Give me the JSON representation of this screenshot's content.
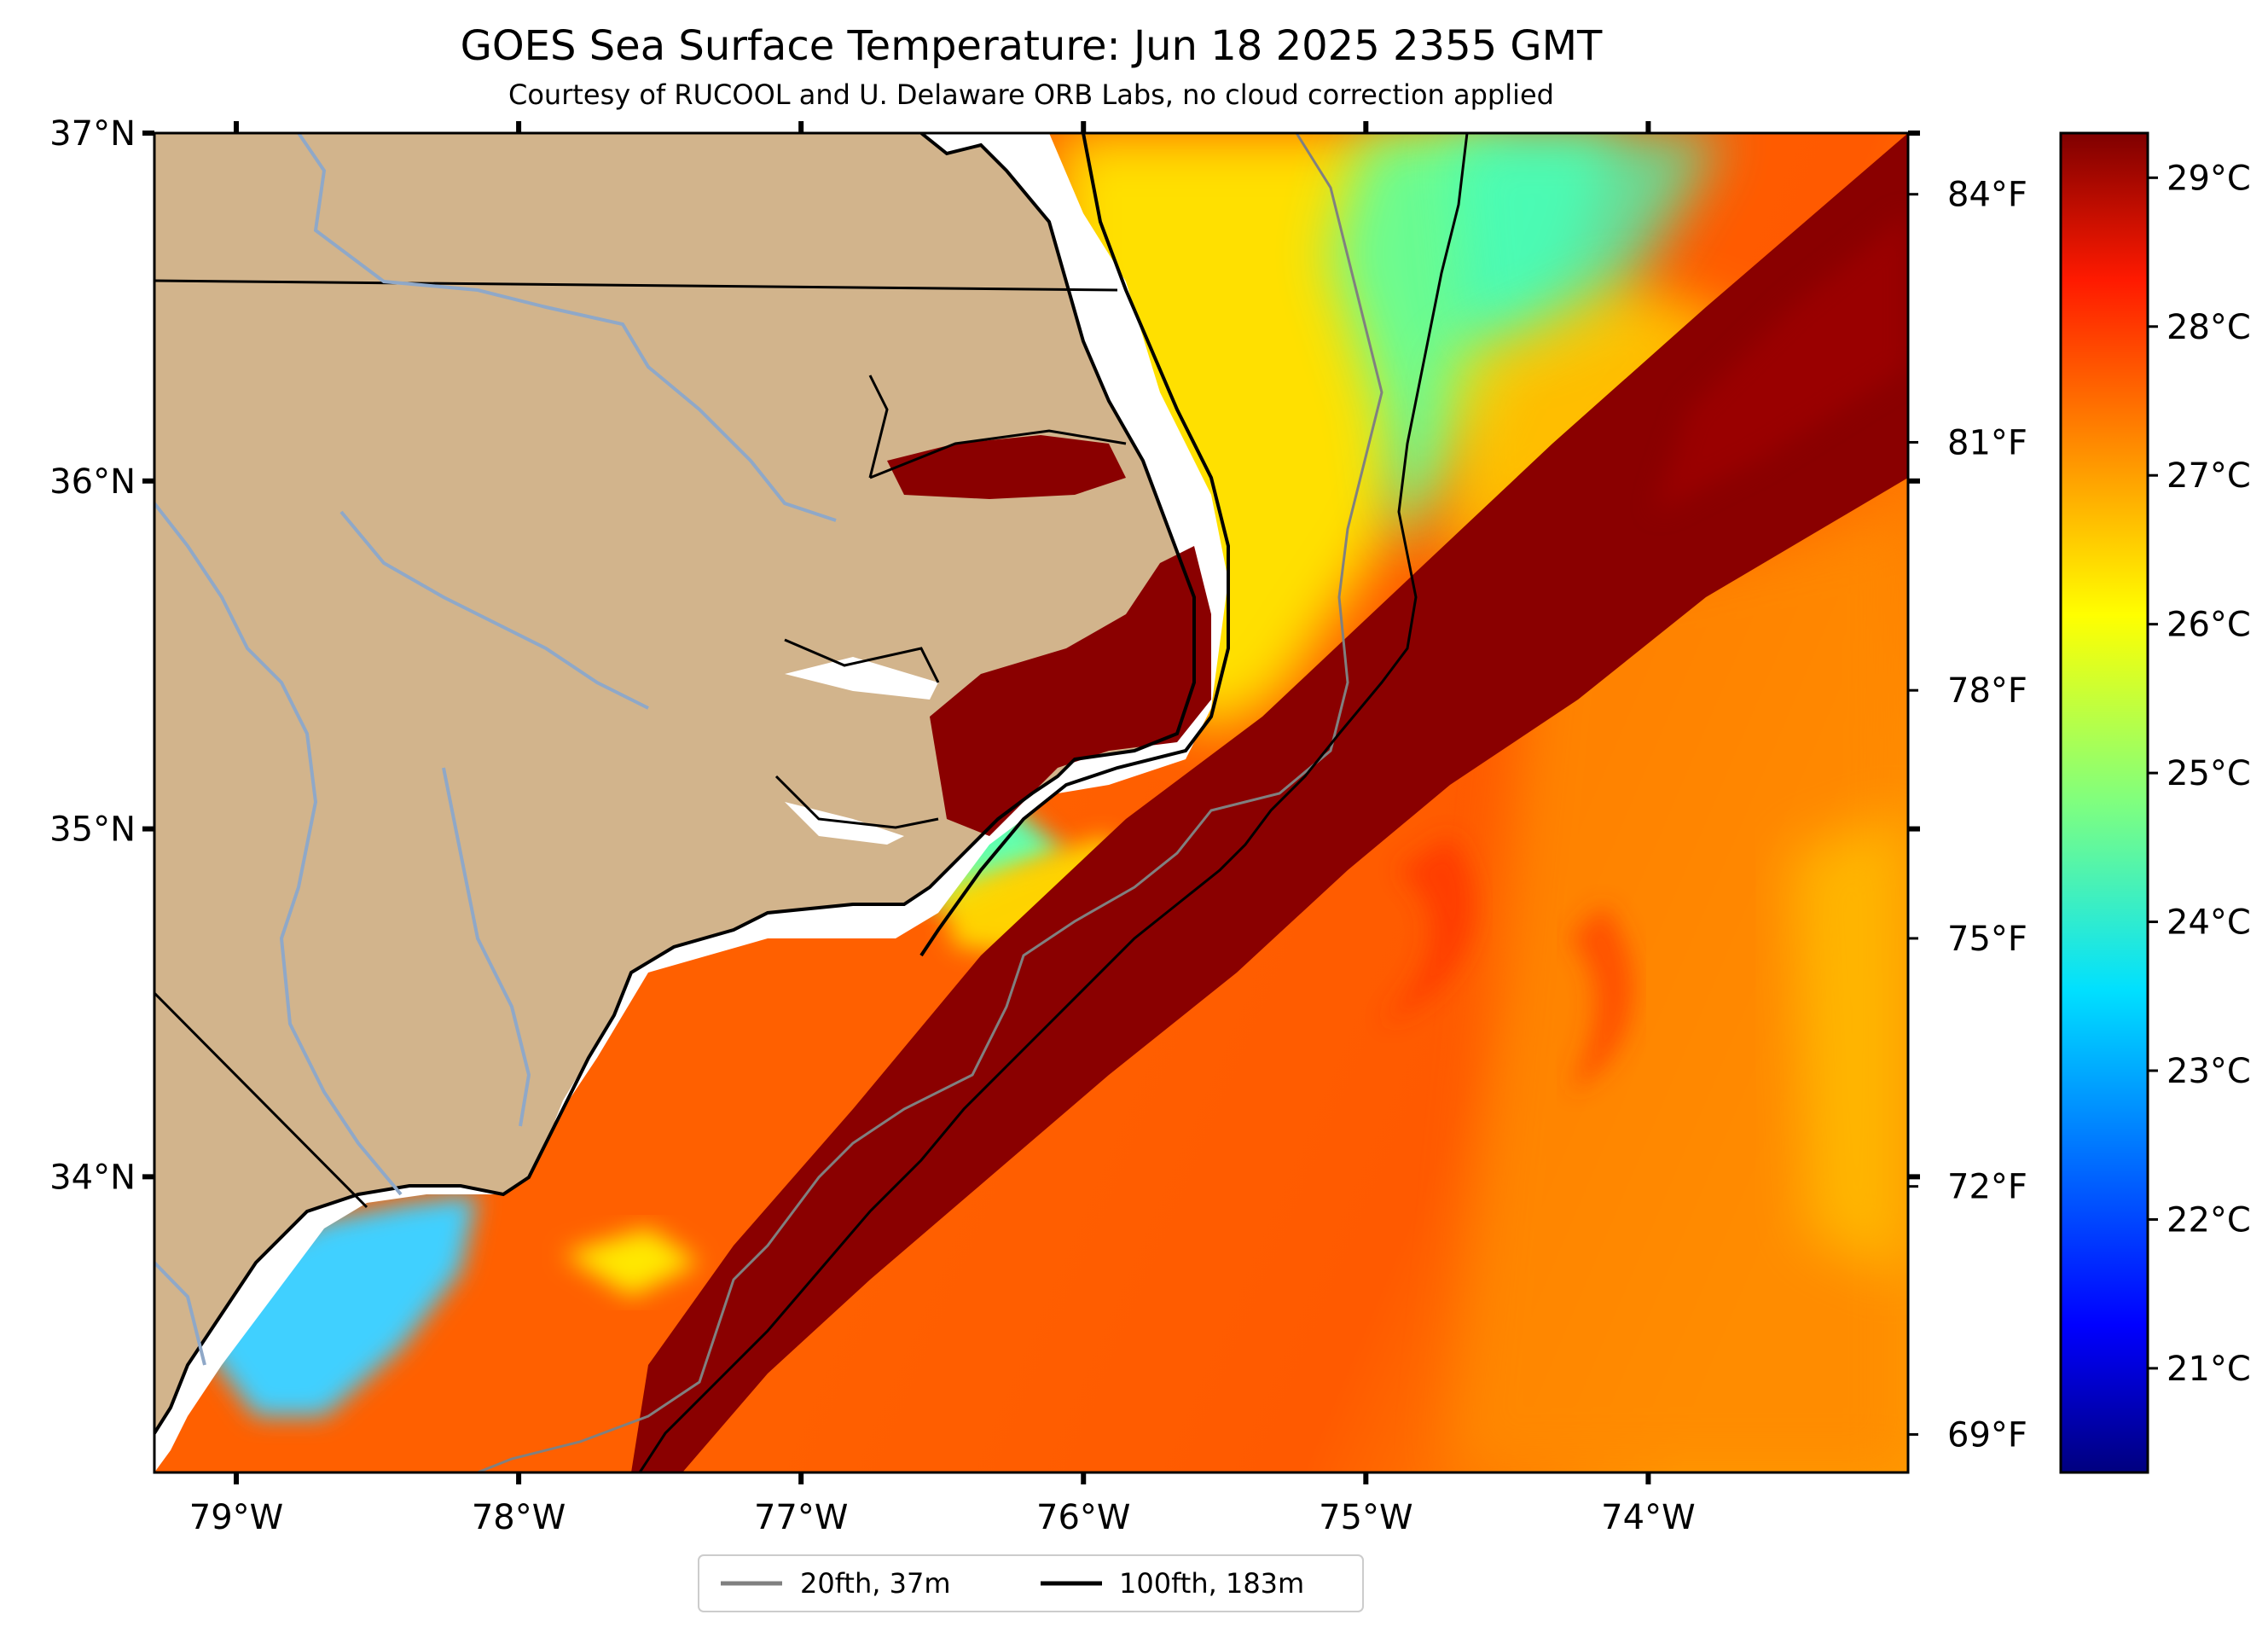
{
  "title": "GOES Sea Surface Temperature: Jun 18 2025 2355 GMT",
  "subtitle": "Courtesy of RUCOOL and U. Delaware ORB Labs, no cloud correction applied",
  "map": {
    "lon_range": [
      -79.29,
      -73.08
    ],
    "lat_range": [
      33.15,
      37.0
    ],
    "lat_ticks": [
      {
        "value": 37,
        "label": "37°N"
      },
      {
        "value": 36,
        "label": "36°N"
      },
      {
        "value": 35,
        "label": "35°N"
      },
      {
        "value": 34,
        "label": "34°N"
      }
    ],
    "lon_ticks": [
      {
        "value": -79,
        "label": "79°W"
      },
      {
        "value": -78,
        "label": "78°W"
      },
      {
        "value": -77,
        "label": "77°W"
      },
      {
        "value": -76,
        "label": "76°W"
      },
      {
        "value": -75,
        "label": "75°W"
      },
      {
        "value": -74,
        "label": "74°W"
      }
    ],
    "land_color": "#d2b48c",
    "river_color": "#8fa8c8",
    "isobath_20_color": "#808080",
    "isobath_100_color": "#000000"
  },
  "colorbar": {
    "colormap": "jet",
    "range_c": [
      20.3,
      29.3
    ],
    "celsius_ticks": [
      {
        "value": 29,
        "label": "29°C"
      },
      {
        "value": 28,
        "label": "28°C"
      },
      {
        "value": 27,
        "label": "27°C"
      },
      {
        "value": 26,
        "label": "26°C"
      },
      {
        "value": 25,
        "label": "25°C"
      },
      {
        "value": 24,
        "label": "24°C"
      },
      {
        "value": 23,
        "label": "23°C"
      },
      {
        "value": 22,
        "label": "22°C"
      },
      {
        "value": 21,
        "label": "21°C"
      }
    ],
    "fahrenheit_ticks": [
      {
        "value": 84,
        "label": "84°F"
      },
      {
        "value": 81,
        "label": "81°F"
      },
      {
        "value": 78,
        "label": "78°F"
      },
      {
        "value": 75,
        "label": "75°F"
      },
      {
        "value": 72,
        "label": "72°F"
      },
      {
        "value": 69,
        "label": "69°F"
      }
    ]
  },
  "legend": {
    "position": "bottom-center",
    "entries": [
      {
        "label": "20fth, 37m",
        "color": "#808080"
      },
      {
        "label": "100fth, 183m",
        "color": "#000000"
      }
    ]
  }
}
